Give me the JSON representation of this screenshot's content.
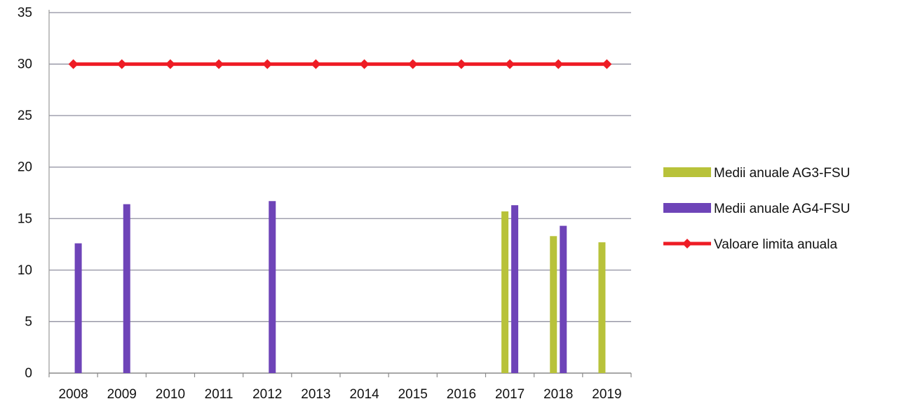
{
  "chart_data": {
    "type": "bar",
    "categories": [
      "2008",
      "2009",
      "2010",
      "2011",
      "2012",
      "2013",
      "2014",
      "2015",
      "2016",
      "2017",
      "2018",
      "2019"
    ],
    "ylim": [
      0,
      35
    ],
    "yticks": [
      0,
      5,
      10,
      15,
      20,
      25,
      30,
      35
    ],
    "grid": true,
    "legend_position": "right",
    "series": [
      {
        "name": "Medii anuale AG3-FSU",
        "type": "bar",
        "color": "#b8c23a",
        "values": [
          null,
          null,
          null,
          null,
          null,
          null,
          null,
          null,
          null,
          15.7,
          13.3,
          12.7
        ]
      },
      {
        "name": "Medii anuale AG4-FSU",
        "type": "bar",
        "color": "#6e44b8",
        "values": [
          12.6,
          16.4,
          null,
          null,
          16.7,
          null,
          null,
          null,
          null,
          16.3,
          14.3,
          null
        ]
      },
      {
        "name": "Valoare limita anuala",
        "type": "line",
        "color": "#ee1c25",
        "values": [
          30,
          30,
          30,
          30,
          30,
          30,
          30,
          30,
          30,
          30,
          30,
          30
        ]
      }
    ]
  }
}
